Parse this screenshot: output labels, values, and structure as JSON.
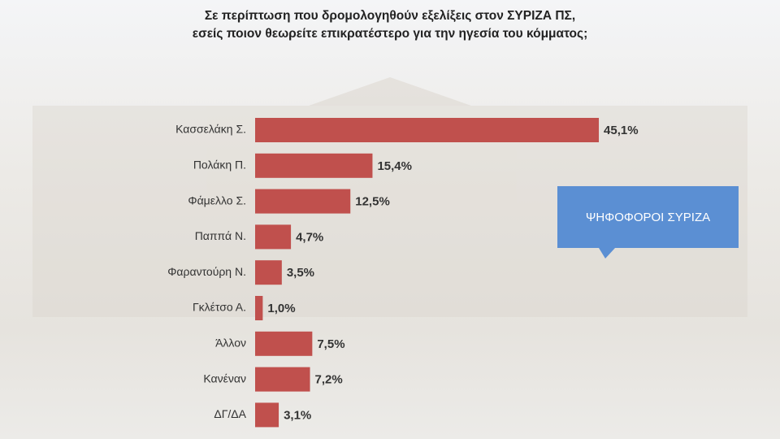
{
  "chart_data": {
    "type": "barh",
    "title": "Σε περίπτωση που δρομολογηθούν εξελίξεις στον ΣΥΡΙΖΑ ΠΣ, εσείς ποιον θεωρείτε επικρατέστερο για την ηγεσία του κόμματος;",
    "annotation": "ΨΗΦΟΦΟΡΟΙ ΣΥΡΙΖΑ",
    "categories": [
      "Κασσελάκη Σ.",
      "Πολάκη Π.",
      "Φάμελλο Σ.",
      "Παππά Ν.",
      "Φαραντούρη Ν.",
      "Γκλέτσο Α.",
      "Άλλον",
      "Κανέναν",
      "ΔΓ/ΔΑ"
    ],
    "values": [
      45.1,
      15.4,
      12.5,
      4.7,
      3.5,
      1.0,
      7.5,
      7.2,
      3.1
    ],
    "value_labels": [
      "45,1%",
      "15,4%",
      "12,5%",
      "4,7%",
      "3,5%",
      "1,0%",
      "7,5%",
      "7,2%",
      "3,1%"
    ],
    "color": "#c0504d",
    "annotation_color": "#5b8fd3"
  }
}
